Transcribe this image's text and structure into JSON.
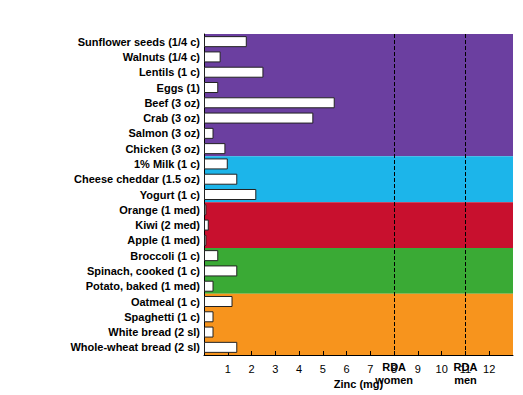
{
  "chart_data": {
    "type": "bar",
    "orientation": "horizontal",
    "x_label": "Zinc (mg)",
    "categories": [
      "Sunflower seeds (1/4 c)",
      "Walnuts (1/4 c)",
      "Lentils (1 c)",
      "Eggs (1)",
      "Beef (3 oz)",
      "Crab (3 oz)",
      "Salmon (3 oz)",
      "Chicken (3 oz)",
      "1% Milk (1 c)",
      "Cheese cheddar (1.5 oz)",
      "Yogurt (1 c)",
      "Orange (1 med)",
      "Kiwi (2 med)",
      "Apple (1 med)",
      "Broccoli (1 c)",
      "Spinach, cooked (1 c)",
      "Potato, baked (1 med)",
      "Oatmeal (1 c)",
      "Spaghetti (1 c)",
      "White bread (2 sl)",
      "Whole-wheat bread (2 sl)"
    ],
    "values": [
      1.8,
      0.7,
      2.5,
      0.6,
      5.5,
      4.6,
      0.4,
      0.9,
      1.0,
      1.4,
      2.2,
      0.1,
      0.2,
      0.1,
      0.6,
      1.4,
      0.4,
      1.2,
      0.4,
      0.4,
      1.4
    ],
    "color": "#ffffff",
    "xlim": [
      0,
      13
    ],
    "xticks": [
      1,
      2,
      3,
      4,
      5,
      6,
      7,
      8,
      9,
      10,
      11,
      12
    ],
    "reference_lines": [
      {
        "x": 8,
        "label": "RDA\nwomen"
      },
      {
        "x": 11,
        "label": "RDA\nmen"
      }
    ],
    "grid": false
  }
}
